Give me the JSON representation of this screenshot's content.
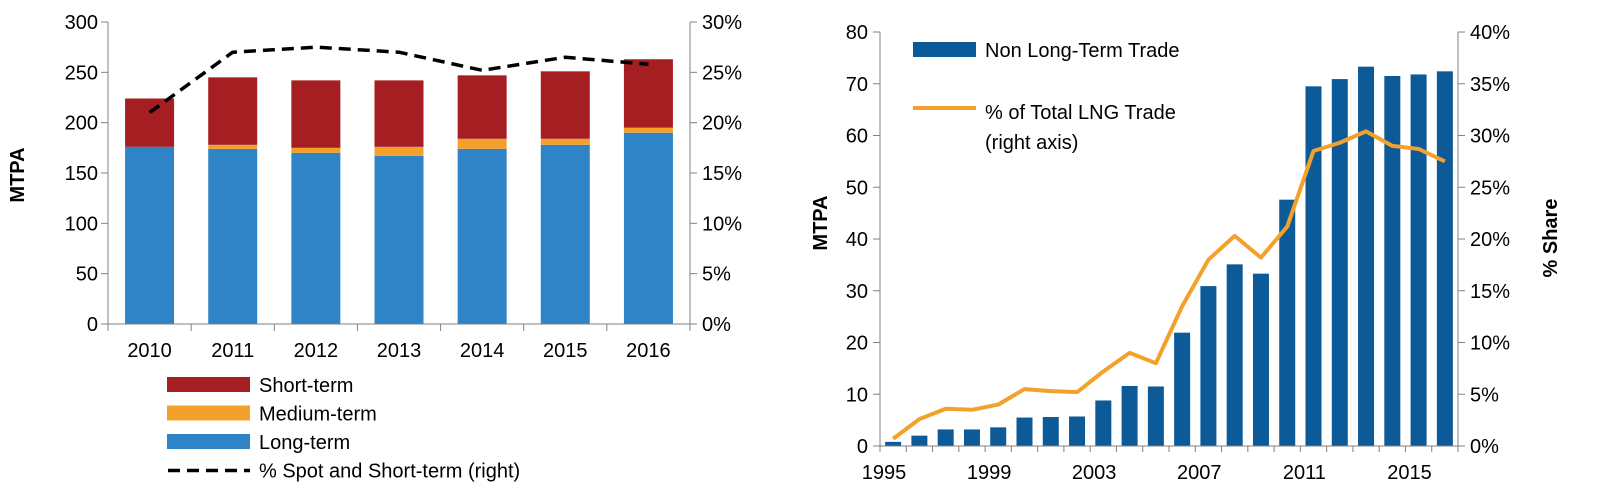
{
  "chart_data": [
    {
      "type": "bar",
      "stacked": true,
      "categories": [
        "2010",
        "2011",
        "2012",
        "2013",
        "2014",
        "2015",
        "2016"
      ],
      "series": [
        {
          "name": "Long-term",
          "color": "#2e84c6",
          "values": [
            176,
            174,
            170,
            167,
            174,
            178,
            190
          ]
        },
        {
          "name": "Medium-term",
          "color": "#f4a12c",
          "values": [
            0,
            4,
            5,
            9,
            10,
            6,
            5
          ]
        },
        {
          "name": "Short-term",
          "color": "#a51e22",
          "values": [
            48,
            67,
            67,
            66,
            63,
            67,
            68
          ]
        }
      ],
      "line_series": {
        "name": "% Spot and Short-term (right)",
        "color": "#000000",
        "style": "dashed",
        "values": [
          21,
          27,
          27.5,
          27,
          25.2,
          26.5,
          25.8
        ]
      },
      "ylabel": "MTPA",
      "ylim": [
        0,
        300
      ],
      "yticks": [
        "0",
        "50",
        "100",
        "150",
        "200",
        "250",
        "300"
      ],
      "y2lim": [
        0,
        30
      ],
      "y2ticks": [
        "0%",
        "5%",
        "10%",
        "15%",
        "20%",
        "25%",
        "30%"
      ],
      "legend_position": "bottom",
      "grid": false
    },
    {
      "type": "bar",
      "x": [
        1995,
        1996,
        1997,
        1998,
        1999,
        2000,
        2001,
        2002,
        2003,
        2004,
        2005,
        2006,
        2007,
        2008,
        2009,
        2010,
        2011,
        2012,
        2013,
        2014,
        2015,
        2016
      ],
      "series": [
        {
          "name": "Non Long-Term Trade",
          "color": "#0d5a98",
          "values": [
            0.8,
            2,
            3.2,
            3.2,
            3.6,
            5.5,
            5.6,
            5.7,
            8.8,
            11.6,
            11.5,
            21.9,
            30.9,
            35.1,
            33.3,
            47.6,
            69.5,
            70.9,
            73.3,
            71.5,
            71.8,
            72.4
          ]
        }
      ],
      "line_series": {
        "name": "% of Total LNG Trade",
        "name_line2": "(right axis)",
        "color": "#f4a12c",
        "values": [
          0.7,
          2.6,
          3.6,
          3.5,
          4,
          5.5,
          5.3,
          5.2,
          7.2,
          9,
          8,
          13.5,
          18,
          20.3,
          18.2,
          21.2,
          28.5,
          29.3,
          30.4,
          29,
          28.7,
          27.5
        ]
      },
      "ylabel": "MTPA",
      "y2label": "% Share",
      "ylim": [
        0,
        80
      ],
      "yticks": [
        "0",
        "10",
        "20",
        "30",
        "40",
        "50",
        "60",
        "70",
        "80"
      ],
      "y2lim": [
        0,
        40
      ],
      "y2ticks": [
        "0%",
        "5%",
        "10%",
        "15%",
        "20%",
        "25%",
        "30%",
        "35%",
        "40%"
      ],
      "xticks": [
        "1995",
        "1999",
        "2003",
        "2007",
        "2011",
        "2015"
      ],
      "legend_position": "top-left",
      "grid": false
    }
  ]
}
